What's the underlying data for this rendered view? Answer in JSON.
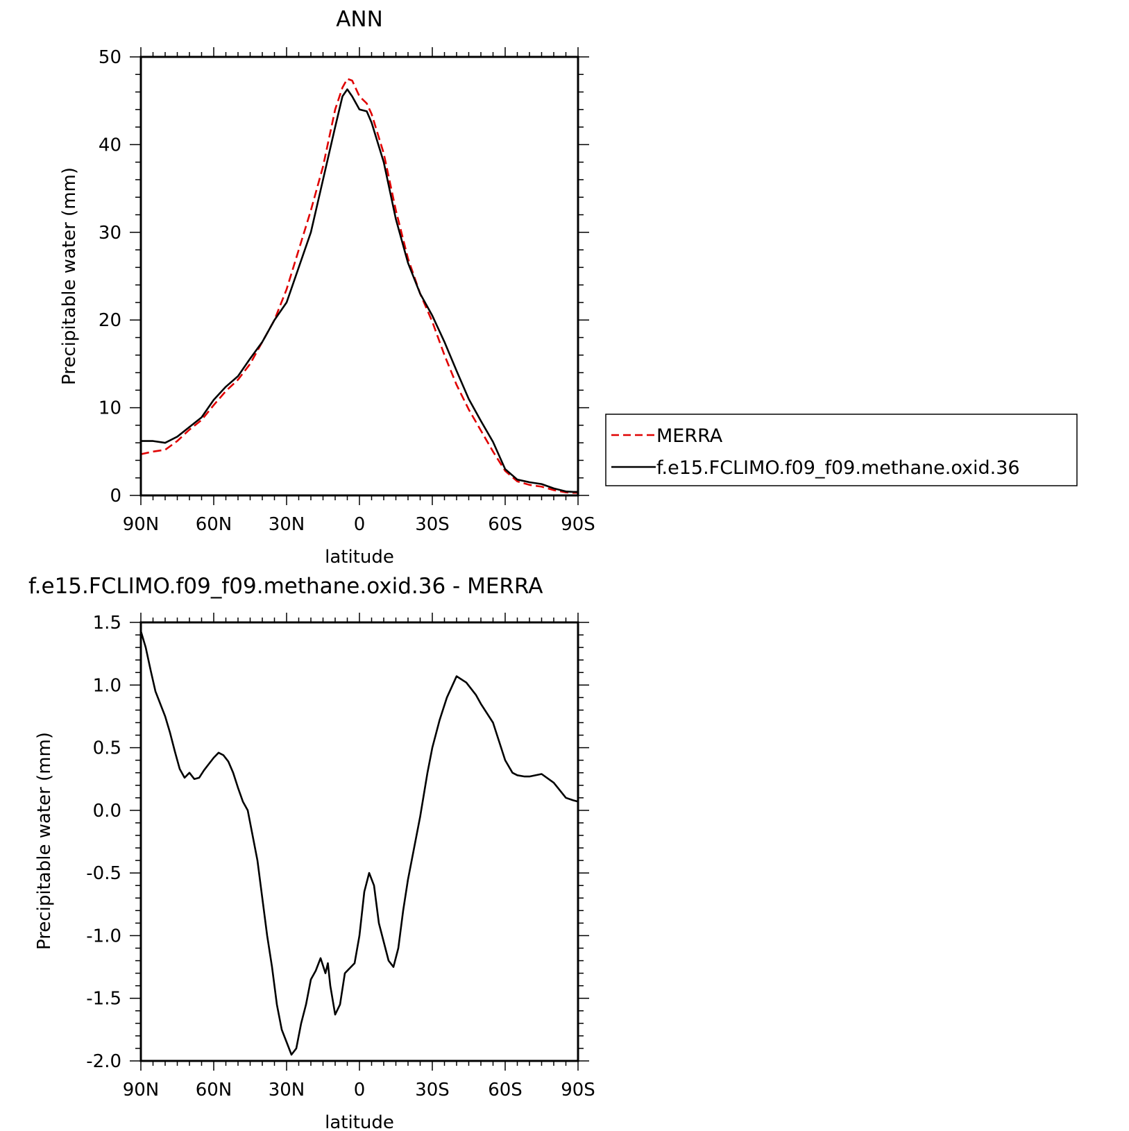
{
  "chart_data": [
    {
      "type": "line",
      "title": "ANN",
      "xlabel": "latitude",
      "ylabel": "Precipitable water (mm)",
      "xlim": [
        90,
        -90
      ],
      "ylim": [
        0,
        50
      ],
      "x_ticks": [
        90,
        60,
        30,
        0,
        -30,
        -60,
        -90
      ],
      "x_tick_labels": [
        "90N",
        "60N",
        "30N",
        "0",
        "30S",
        "60S",
        "90S"
      ],
      "y_ticks": [
        0,
        10,
        20,
        30,
        40,
        50
      ],
      "y_tick_labels": [
        "0",
        "10",
        "20",
        "30",
        "40",
        "50"
      ],
      "grid": false,
      "legend_position": "right",
      "series": [
        {
          "name": "MERRA",
          "color": "#e00000",
          "dash": true,
          "x": [
            90,
            85,
            80,
            75,
            70,
            65,
            60,
            55,
            50,
            45,
            40,
            35,
            30,
            25,
            20,
            15,
            10,
            7,
            5,
            3,
            0,
            -3,
            -5,
            -10,
            -15,
            -20,
            -25,
            -30,
            -35,
            -40,
            -45,
            -50,
            -55,
            -60,
            -65,
            -70,
            -75,
            -80,
            -85,
            -88,
            -90
          ],
          "y": [
            4.7,
            5.0,
            5.2,
            6.2,
            7.5,
            8.6,
            10.3,
            11.9,
            13.2,
            15.0,
            17.5,
            20.0,
            23.5,
            28.0,
            32.5,
            37.5,
            44.0,
            46.5,
            47.5,
            47.3,
            45.5,
            44.7,
            43.5,
            39.0,
            32.5,
            27.0,
            23.0,
            19.8,
            16.0,
            12.6,
            9.8,
            7.4,
            5.0,
            2.8,
            1.6,
            1.2,
            1.0,
            0.6,
            0.35,
            0.3,
            0.3
          ]
        },
        {
          "name": "f.e15.FCLIMO.f09_f09.methane.oxid.36",
          "color": "#000000",
          "dash": false,
          "x": [
            90,
            85,
            80,
            75,
            70,
            65,
            60,
            55,
            50,
            45,
            40,
            35,
            30,
            25,
            20,
            15,
            10,
            7,
            5,
            3,
            0,
            -3,
            -5,
            -10,
            -15,
            -20,
            -25,
            -30,
            -35,
            -40,
            -45,
            -50,
            -55,
            -60,
            -65,
            -70,
            -75,
            -80,
            -85,
            -88,
            -90
          ],
          "y": [
            6.2,
            6.2,
            6.0,
            6.7,
            7.8,
            8.9,
            10.9,
            12.4,
            13.6,
            15.6,
            17.5,
            20.0,
            22.0,
            26.0,
            30.0,
            36.0,
            42.0,
            45.5,
            46.3,
            45.5,
            44.0,
            43.8,
            42.5,
            38.0,
            31.5,
            26.5,
            23.0,
            20.5,
            17.5,
            14.2,
            11.0,
            8.5,
            6.1,
            3.0,
            1.8,
            1.5,
            1.3,
            0.8,
            0.45,
            0.4,
            0.4
          ]
        }
      ]
    },
    {
      "type": "line",
      "title": "f.e15.FCLIMO.f09_f09.methane.oxid.36 - MERRA",
      "xlabel": "latitude",
      "ylabel": "Precipitable water (mm)",
      "xlim": [
        90,
        -90
      ],
      "ylim": [
        -2.0,
        1.5
      ],
      "x_ticks": [
        90,
        60,
        30,
        0,
        -30,
        -60,
        -90
      ],
      "x_tick_labels": [
        "90N",
        "60N",
        "30N",
        "0",
        "30S",
        "60S",
        "90S"
      ],
      "y_ticks": [
        1.5,
        1.0,
        0.5,
        0.0,
        -0.5,
        -1.0,
        -1.5,
        -2.0
      ],
      "y_tick_labels": [
        "1.5",
        "1.0",
        "0.5",
        "0.0",
        "-0.5",
        "-1.0",
        "-1.5",
        "-2.0"
      ],
      "grid": false,
      "series": [
        {
          "color": "#000000",
          "dash": false,
          "x": [
            90,
            88,
            86,
            84,
            82,
            80,
            78,
            76,
            74,
            72,
            70,
            68,
            66,
            64,
            62,
            60,
            58,
            56,
            54,
            52,
            50,
            48,
            46,
            44,
            42,
            40,
            38,
            36,
            34,
            32,
            30,
            28,
            26,
            24,
            22,
            20,
            18,
            16,
            14,
            13,
            12,
            10,
            8,
            6,
            4,
            2,
            0,
            -2,
            -4,
            -6,
            -8,
            -10,
            -12,
            -14,
            -16,
            -18,
            -20,
            -22,
            -25,
            -28,
            -30,
            -33,
            -36,
            -40,
            -44,
            -48,
            -50,
            -55,
            -60,
            -63,
            -65,
            -68,
            -70,
            -75,
            -80,
            -85,
            -88,
            -90
          ],
          "y": [
            1.43,
            1.3,
            1.12,
            0.95,
            0.85,
            0.75,
            0.62,
            0.47,
            0.33,
            0.26,
            0.3,
            0.25,
            0.26,
            0.32,
            0.37,
            0.42,
            0.46,
            0.44,
            0.39,
            0.3,
            0.18,
            0.07,
            0.0,
            -0.2,
            -0.4,
            -0.7,
            -1.0,
            -1.25,
            -1.55,
            -1.75,
            -1.85,
            -1.95,
            -1.9,
            -1.7,
            -1.55,
            -1.35,
            -1.28,
            -1.18,
            -1.3,
            -1.22,
            -1.4,
            -1.63,
            -1.55,
            -1.3,
            -1.26,
            -1.22,
            -1.0,
            -0.65,
            -0.5,
            -0.6,
            -0.9,
            -1.05,
            -1.2,
            -1.25,
            -1.1,
            -0.8,
            -0.55,
            -0.35,
            -0.05,
            0.3,
            0.5,
            0.72,
            0.9,
            1.07,
            1.02,
            0.92,
            0.85,
            0.7,
            0.4,
            0.3,
            0.28,
            0.27,
            0.27,
            0.29,
            0.22,
            0.1,
            0.08,
            0.07
          ]
        }
      ]
    }
  ]
}
